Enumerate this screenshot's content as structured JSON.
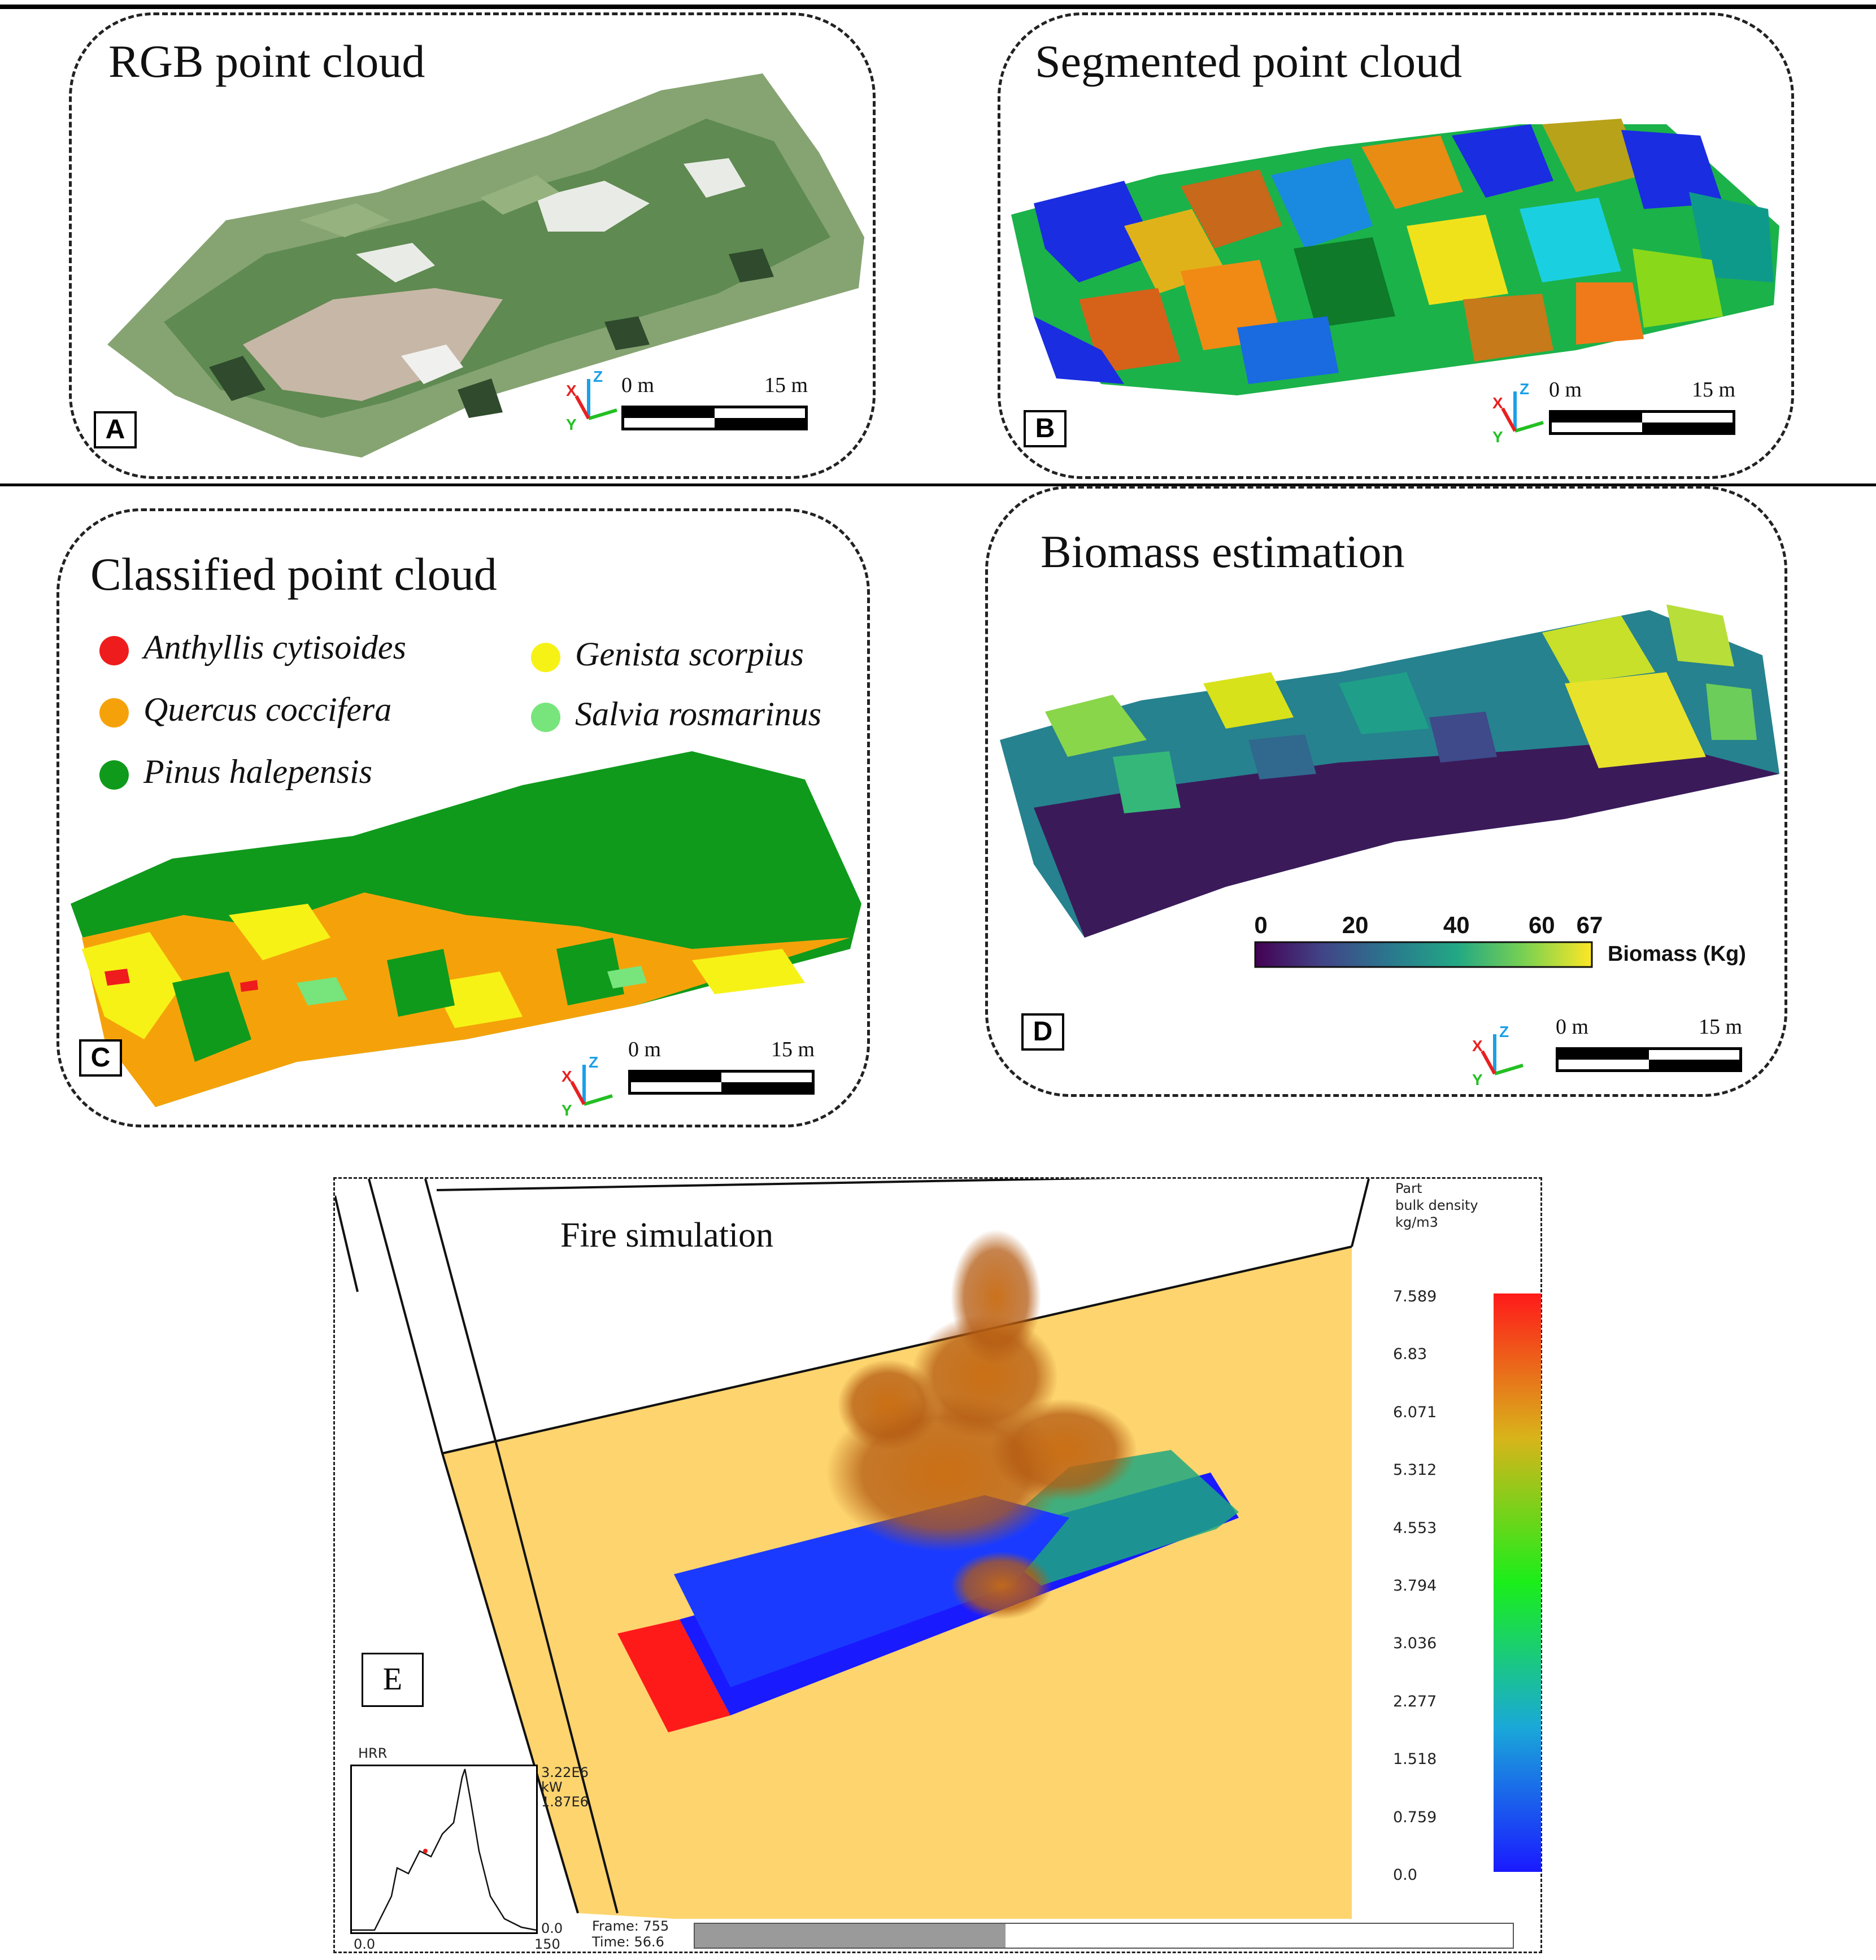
{
  "panels": {
    "a": {
      "title": "RGB point cloud",
      "label": "A",
      "scale_start": "0 m",
      "scale_end": "15 m"
    },
    "b": {
      "title": "Segmented point cloud",
      "label": "B",
      "scale_start": "0 m",
      "scale_end": "15 m"
    },
    "c": {
      "title": "Classified point cloud",
      "label": "C",
      "scale_start": "0 m",
      "scale_end": "15 m",
      "legend": [
        {
          "name": "Anthyllis cytisoides",
          "color": "#ee1c1c"
        },
        {
          "name": "Quercus coccifera",
          "color": "#f5a20a"
        },
        {
          "name": "Pinus halepensis",
          "color": "#0f9a1c"
        },
        {
          "name": "Genista scorpius",
          "color": "#f6f216"
        },
        {
          "name": "Salvia rosmarinus",
          "color": "#77e57c"
        }
      ]
    },
    "d": {
      "title": "Biomass estimation",
      "label": "D",
      "scale_start": "0 m",
      "scale_end": "15 m",
      "colorbar": {
        "ticks": [
          "0",
          "20",
          "40",
          "60",
          "67"
        ],
        "unit": "Biomass (Kg)",
        "min": 0,
        "max": 67
      }
    },
    "e": {
      "title": "Fire simulation",
      "label": "E",
      "colorbar_title": [
        "Part",
        "bulk density",
        "kg/m3"
      ],
      "colorbar_ticks": [
        "7.589",
        "6.83",
        "6.071",
        "5.312",
        "4.553",
        "3.794",
        "3.036",
        "2.277",
        "1.518",
        "0.759",
        "0.0"
      ],
      "hrr": {
        "title": "HRR",
        "ymax": "3.22E6",
        "unit": "kW",
        "current": "1.87E6",
        "ymin": "0.0",
        "xmin": "0.0",
        "xmax": "150"
      },
      "frame": "Frame: 755",
      "time": "Time: 56.6",
      "progress": 0.38
    }
  },
  "axis_letters": {
    "x": "X",
    "y": "Y",
    "z": "Z"
  },
  "colors": {
    "accent_red": "#e81f1f",
    "sand": "#fdd46e",
    "pine": "#0f9a1c"
  }
}
